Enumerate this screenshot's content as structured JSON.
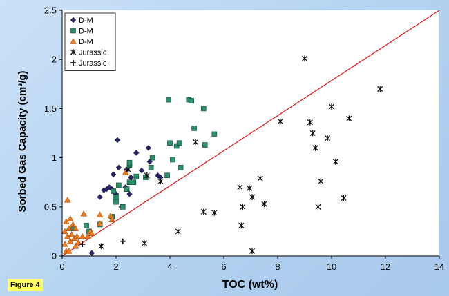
{
  "figure_label": "Figure 4",
  "colors": {
    "background": "#b8d4f0",
    "dm_diamond": "#27266b",
    "dm_square": "#2f8f6b",
    "dm_triangle": "#f07a1e",
    "jurassic": "#000000",
    "trend_line": "#e02020"
  },
  "chart_data": {
    "type": "scatter",
    "xlabel": "TOC (wt%)",
    "ylabel": "Sorbed Gas Capacity (cm³/g)",
    "xlim": [
      0,
      14
    ],
    "ylim": [
      0,
      2.5
    ],
    "xticks": [
      0,
      2,
      4,
      6,
      8,
      10,
      12,
      14
    ],
    "yticks": [
      0,
      0.5,
      1,
      1.5,
      2,
      2.5
    ],
    "ytick_labels": [
      "0",
      "0.5",
      "1",
      "1.5",
      "2",
      "2.5"
    ],
    "grid": false,
    "legend_position": "top-left",
    "series": [
      {
        "name": "D-M",
        "marker": "diamond",
        "color": "#27266b",
        "points": [
          [
            1.1,
            0.03
          ],
          [
            1.4,
            0.6
          ],
          [
            1.55,
            0.67
          ],
          [
            1.65,
            0.68
          ],
          [
            1.75,
            0.7
          ],
          [
            1.85,
            0.68
          ],
          [
            1.9,
            0.83
          ],
          [
            2.0,
            0.63
          ],
          [
            2.05,
            1.18
          ],
          [
            2.1,
            0.9
          ],
          [
            2.2,
            0.5
          ],
          [
            2.35,
            0.7
          ],
          [
            2.4,
            0.88
          ],
          [
            2.5,
            0.63
          ],
          [
            2.55,
            0.8
          ],
          [
            2.75,
            1.05
          ],
          [
            2.95,
            0.87
          ],
          [
            3.2,
            1.1
          ],
          [
            3.25,
            0.96
          ],
          [
            3.55,
            0.82
          ],
          [
            3.65,
            0.8
          ]
        ]
      },
      {
        "name": "D-M",
        "marker": "square",
        "color": "#2f8f6b",
        "points": [
          [
            0.4,
            0.28
          ],
          [
            0.9,
            0.31
          ],
          [
            1.0,
            0.25
          ],
          [
            1.4,
            0.32
          ],
          [
            1.85,
            0.4
          ],
          [
            1.9,
            0.66
          ],
          [
            2.0,
            0.6
          ],
          [
            2.0,
            0.55
          ],
          [
            2.1,
            0.72
          ],
          [
            2.25,
            0.5
          ],
          [
            2.4,
            0.68
          ],
          [
            2.5,
            0.75
          ],
          [
            2.5,
            0.92
          ],
          [
            2.5,
            0.95
          ],
          [
            2.65,
            0.75
          ],
          [
            2.75,
            0.81
          ],
          [
            3.1,
            0.8
          ],
          [
            3.3,
            0.9
          ],
          [
            3.35,
            1.0
          ],
          [
            3.9,
            0.82
          ],
          [
            3.95,
            1.59
          ],
          [
            4.0,
            1.15
          ],
          [
            4.1,
            0.98
          ],
          [
            4.25,
            1.12
          ],
          [
            4.35,
            1.15
          ],
          [
            4.4,
            0.9
          ],
          [
            4.7,
            1.59
          ],
          [
            4.8,
            1.58
          ],
          [
            4.9,
            1.3
          ],
          [
            5.25,
            1.5
          ],
          [
            5.3,
            1.13
          ],
          [
            5.65,
            1.24
          ]
        ]
      },
      {
        "name": "D-M",
        "marker": "triangle",
        "color": "#f07a1e",
        "points": [
          [
            0.1,
            0.25
          ],
          [
            0.1,
            0.12
          ],
          [
            0.15,
            0.05
          ],
          [
            0.15,
            0.35
          ],
          [
            0.2,
            0.2
          ],
          [
            0.2,
            0.57
          ],
          [
            0.25,
            0.28
          ],
          [
            0.25,
            0.05
          ],
          [
            0.3,
            0.38
          ],
          [
            0.3,
            0.15
          ],
          [
            0.35,
            0.22
          ],
          [
            0.4,
            0.32
          ],
          [
            0.45,
            0.18
          ],
          [
            0.5,
            0.28
          ],
          [
            0.5,
            0.1
          ],
          [
            0.55,
            0.2
          ],
          [
            0.6,
            0.14
          ],
          [
            0.75,
            0.2
          ],
          [
            0.8,
            0.43
          ],
          [
            0.95,
            0.2
          ],
          [
            1.05,
            0.25
          ],
          [
            1.1,
            0.23
          ],
          [
            1.4,
            0.42
          ],
          [
            1.4,
            0.33
          ],
          [
            1.8,
            0.41
          ],
          [
            1.85,
            0.37
          ],
          [
            2.35,
            0.85
          ]
        ]
      },
      {
        "name": "Jurassic",
        "marker": "asterisk",
        "color": "#000000",
        "points": [
          [
            1.45,
            0.1
          ],
          [
            2.45,
            0.88
          ],
          [
            3.05,
            0.13
          ],
          [
            3.15,
            0.82
          ],
          [
            3.65,
            0.76
          ],
          [
            4.3,
            0.25
          ],
          [
            4.95,
            1.16
          ],
          [
            5.25,
            0.45
          ],
          [
            5.65,
            0.44
          ],
          [
            6.6,
            0.7
          ],
          [
            6.65,
            0.31
          ],
          [
            6.7,
            0.5
          ],
          [
            6.95,
            0.69
          ],
          [
            7.05,
            0.6
          ],
          [
            7.05,
            0.05
          ],
          [
            7.35,
            0.79
          ],
          [
            7.5,
            0.53
          ],
          [
            8.1,
            1.37
          ],
          [
            9.0,
            2.01
          ],
          [
            9.2,
            1.36
          ],
          [
            9.3,
            1.25
          ],
          [
            9.4,
            1.1
          ],
          [
            9.5,
            0.5
          ],
          [
            9.6,
            0.76
          ],
          [
            9.85,
            1.2
          ],
          [
            10.0,
            1.52
          ],
          [
            10.15,
            0.96
          ],
          [
            10.45,
            0.59
          ],
          [
            10.65,
            1.4
          ],
          [
            11.8,
            1.7
          ]
        ]
      },
      {
        "name": "Jurassic",
        "marker": "plus",
        "color": "#000000",
        "points": [
          [
            0.75,
            0.12
          ],
          [
            2.25,
            0.15
          ]
        ]
      }
    ],
    "trend_line": {
      "x": [
        0,
        14
      ],
      "y": [
        0,
        2.5
      ],
      "color": "#e02020"
    }
  }
}
